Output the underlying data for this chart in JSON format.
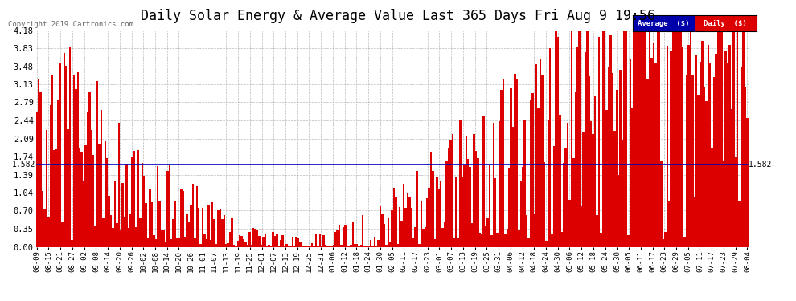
{
  "title": "Daily Solar Energy & Average Value Last 365 Days Fri Aug 9 19:56",
  "copyright": "Copyright 2019 Cartronics.com",
  "average_value": 1.582,
  "ymin": 0.0,
  "ymax": 4.18,
  "yticks": [
    0.0,
    0.35,
    0.7,
    1.04,
    1.39,
    1.74,
    2.09,
    2.44,
    2.79,
    3.13,
    3.48,
    3.83,
    4.18
  ],
  "bar_color": "#dd0000",
  "avg_line_color": "#0000bb",
  "background_color": "#ffffff",
  "grid_color": "#aaaaaa",
  "title_fontsize": 12,
  "legend_avg_color": "#0000aa",
  "legend_daily_color": "#dd0000",
  "xtick_labels": [
    "08-09",
    "08-15",
    "08-21",
    "08-27",
    "09-02",
    "09-08",
    "09-14",
    "09-20",
    "09-26",
    "10-02",
    "10-08",
    "10-14",
    "10-20",
    "10-26",
    "11-01",
    "11-07",
    "11-13",
    "11-19",
    "11-25",
    "12-01",
    "12-07",
    "12-13",
    "12-19",
    "12-25",
    "12-31",
    "01-06",
    "01-12",
    "01-18",
    "01-24",
    "01-30",
    "02-05",
    "02-11",
    "02-17",
    "02-23",
    "03-01",
    "03-07",
    "03-13",
    "03-19",
    "03-25",
    "03-31",
    "04-06",
    "04-12",
    "04-18",
    "04-24",
    "04-30",
    "05-06",
    "05-12",
    "05-18",
    "05-24",
    "05-30",
    "06-05",
    "06-11",
    "06-17",
    "06-23",
    "06-29",
    "07-05",
    "07-11",
    "07-17",
    "07-23",
    "07-29",
    "08-04"
  ],
  "n_bars": 365
}
